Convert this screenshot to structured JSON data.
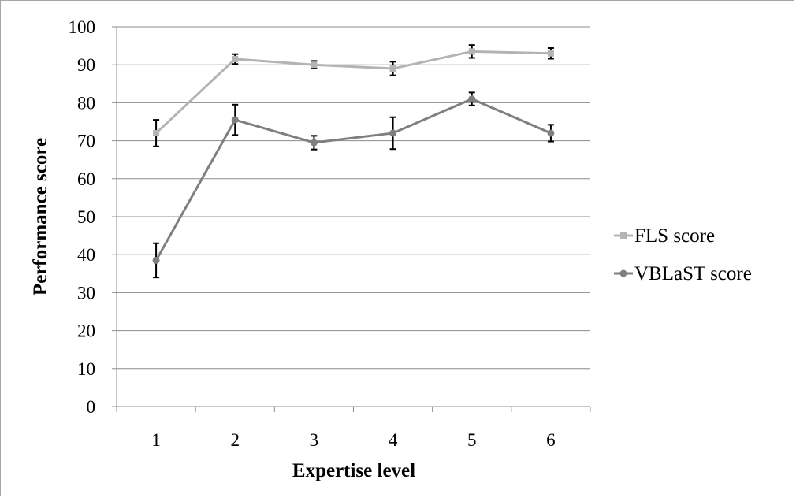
{
  "chart_data": {
    "type": "line",
    "title": "",
    "xlabel": "Expertise level",
    "ylabel": "Performance score",
    "categories": [
      "1",
      "2",
      "3",
      "4",
      "5",
      "6"
    ],
    "ylim": [
      0,
      100
    ],
    "yticks": [
      0,
      10,
      20,
      30,
      40,
      50,
      60,
      70,
      80,
      90,
      100
    ],
    "grid": true,
    "legend_position": "right",
    "series": [
      {
        "name": "FLS score",
        "marker": "square",
        "color": "#b4b4b4",
        "values": [
          72,
          91.5,
          90,
          89,
          93.5,
          93
        ],
        "error": [
          3.5,
          1.3,
          1,
          1.8,
          1.7,
          1.4
        ]
      },
      {
        "name": "VBLaST score",
        "marker": "circle",
        "color": "#7f7f7f",
        "values": [
          38.5,
          75.5,
          69.5,
          72,
          81,
          72
        ],
        "error": [
          4.5,
          4,
          1.8,
          4.2,
          1.7,
          2.2
        ]
      }
    ]
  }
}
